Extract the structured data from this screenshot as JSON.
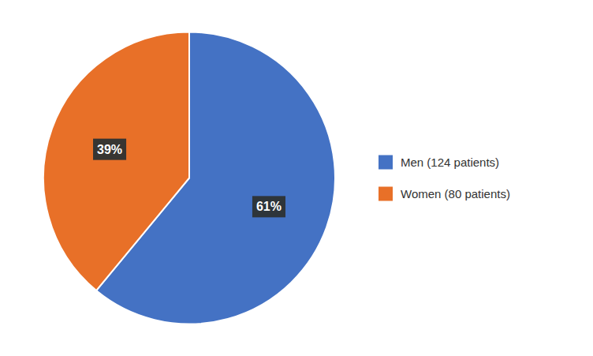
{
  "chart_data": {
    "type": "pie",
    "categories": [
      "Men (124 patients)",
      "Women (80 patients)"
    ],
    "values": [
      61,
      39
    ],
    "value_labels": [
      "61%",
      "39%"
    ],
    "colors": [
      "#4472C4",
      "#E87028"
    ],
    "legend": "right"
  }
}
